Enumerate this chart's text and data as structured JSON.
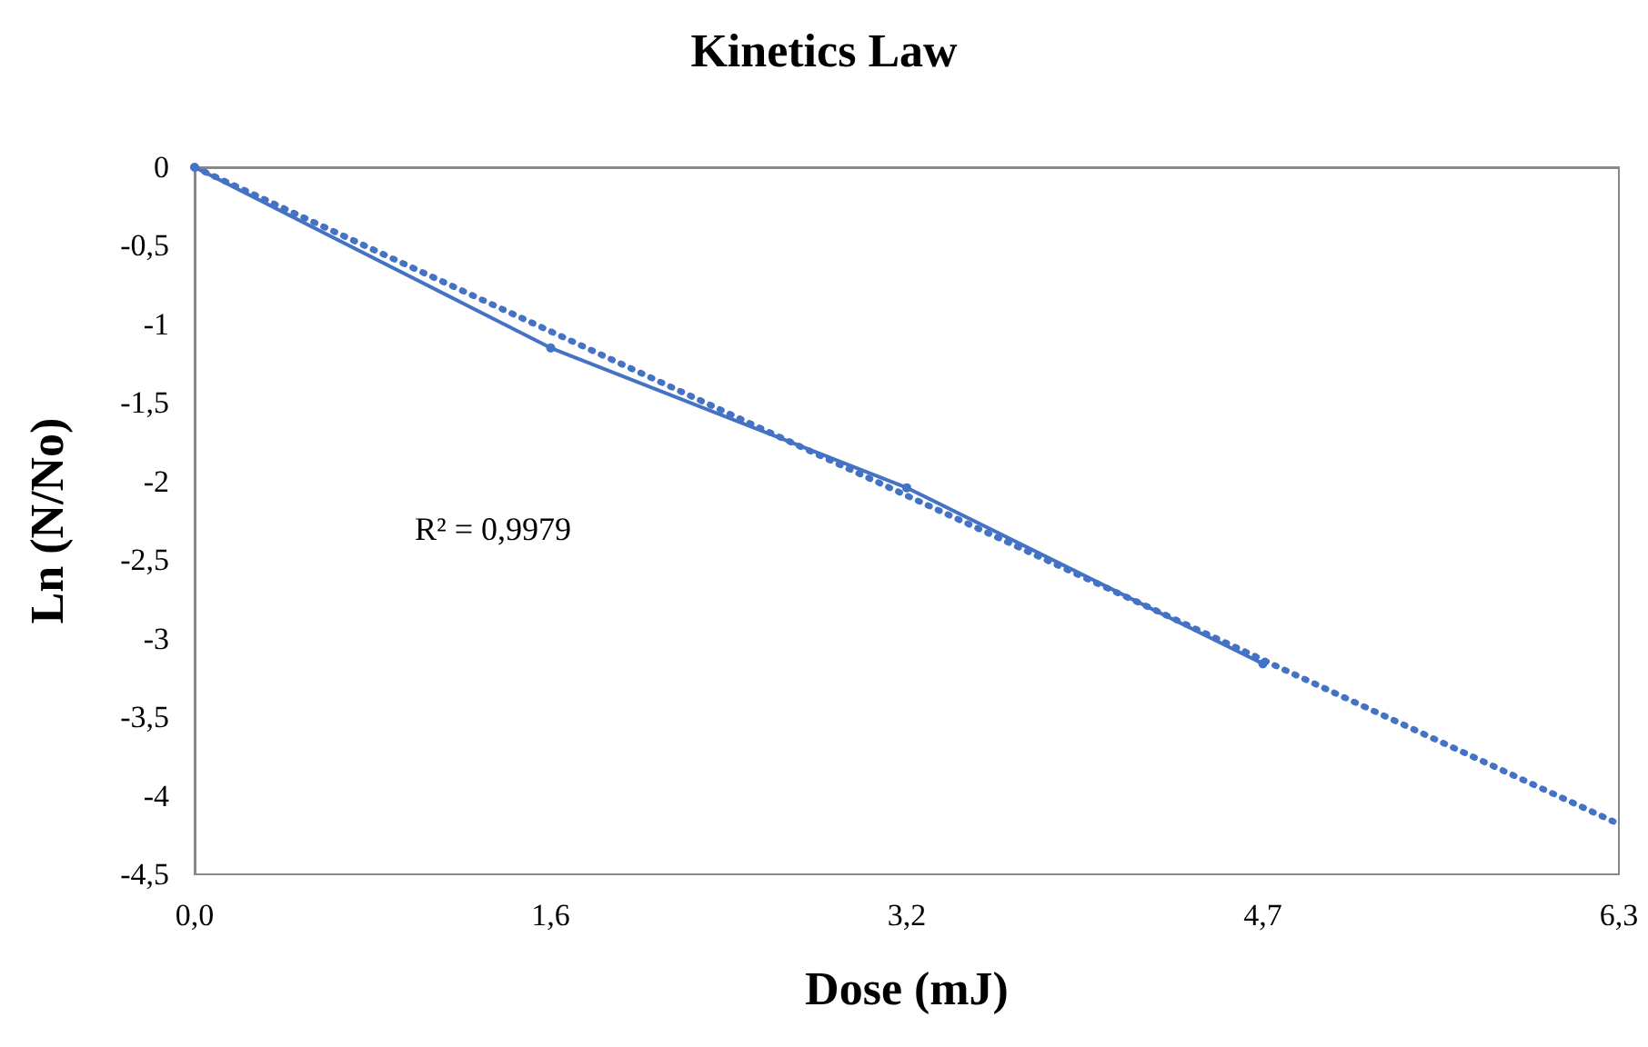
{
  "chart_data": {
    "type": "line",
    "title": "Kinetics Law",
    "xlabel": "Dose (mJ)",
    "ylabel": "Ln (N/No)",
    "annotations": [
      "R² = 0,9979"
    ],
    "xlim": [
      0,
      6.3
    ],
    "xticks": [
      {
        "value": 0,
        "label": "0,0"
      },
      {
        "value": 1.575,
        "label": "1,6"
      },
      {
        "value": 3.15,
        "label": "3,2"
      },
      {
        "value": 4.725,
        "label": "4,7"
      },
      {
        "value": 6.3,
        "label": "6,3"
      }
    ],
    "ylim": [
      -4.5,
      0
    ],
    "yticks": [
      {
        "value": 0,
        "label": "0"
      },
      {
        "value": -0.5,
        "label": "-0,5"
      },
      {
        "value": -1,
        "label": "-1"
      },
      {
        "value": -1.5,
        "label": "-1,5"
      },
      {
        "value": -2,
        "label": "-2"
      },
      {
        "value": -2.5,
        "label": "-2,5"
      },
      {
        "value": -3,
        "label": "-3"
      },
      {
        "value": -3.5,
        "label": "-3,5"
      },
      {
        "value": -4,
        "label": "-4"
      },
      {
        "value": -4.5,
        "label": "-4,5"
      }
    ],
    "grid": false,
    "series": [
      {
        "color": "#4472c4",
        "x": [
          0,
          1.575,
          3.15,
          4.725
        ],
        "values": [
          0,
          -1.15,
          -2.04,
          -3.16
        ],
        "marker": "circle",
        "line_style": "solid"
      },
      {
        "color": "#4472c4",
        "x": [
          0,
          6.3
        ],
        "values": [
          0,
          -4.18
        ],
        "marker": "none",
        "line_style": "dotted"
      }
    ]
  }
}
